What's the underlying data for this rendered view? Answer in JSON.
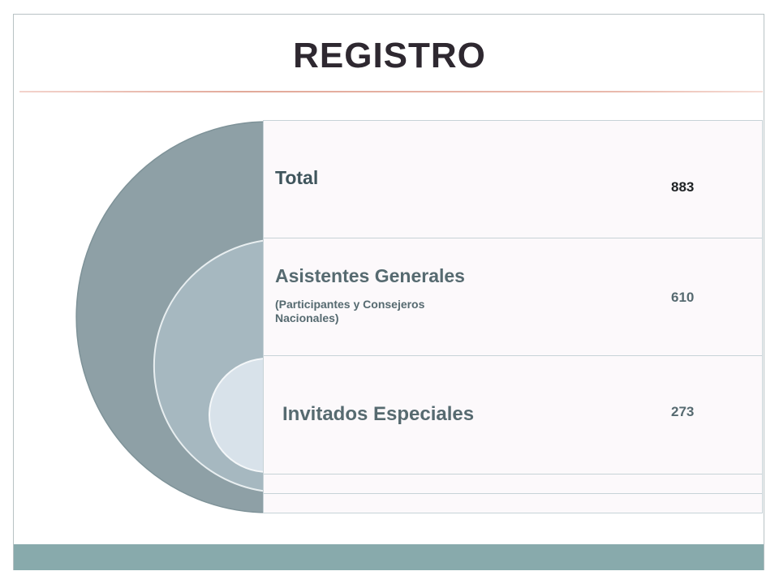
{
  "title": "REGISTRO",
  "rows": [
    {
      "label": "Total",
      "sublabel": "",
      "value": "883"
    },
    {
      "label": "Asistentes Generales",
      "sublabel": "(Participantes y Consejeros Nacionales)",
      "value": "610"
    },
    {
      "label": "Invitados Especiales",
      "sublabel": "",
      "value": "273"
    }
  ],
  "colors": {
    "title": "#2e2830",
    "accent_rule": "#e2a99a",
    "outer_arc": "#8ea0a6",
    "middle_arc": "#a6b8c0",
    "inner_arc": "#d8e2ea",
    "label": "#566a70",
    "value_total": "#1e2224",
    "value_other": "#566a70",
    "footer": "#88aaac",
    "panel_bg": "#fcf9fb"
  }
}
